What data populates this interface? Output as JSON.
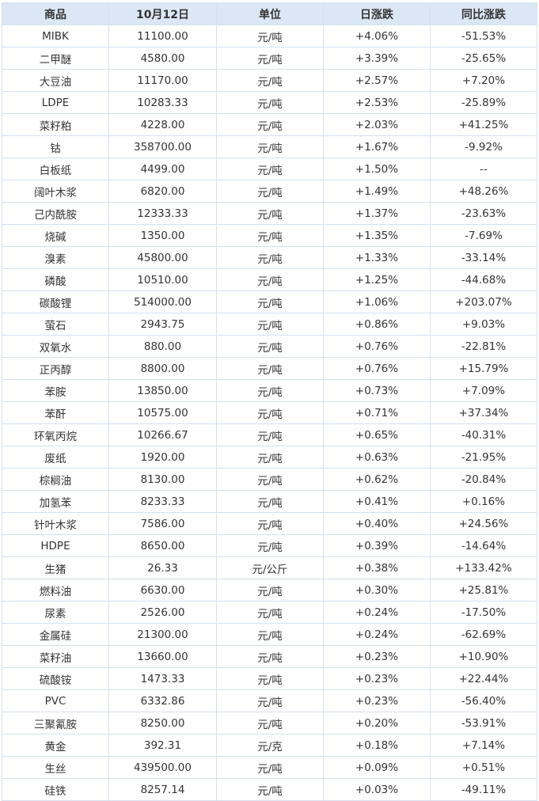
{
  "table": {
    "headers": [
      "商品",
      "10月12日",
      "单位",
      "日涨跌",
      "同比涨跌"
    ],
    "rows": [
      [
        "MIBK",
        "11100.00",
        "元/吨",
        "+4.06%",
        "-51.53%"
      ],
      [
        "二甲醚",
        "4580.00",
        "元/吨",
        "+3.39%",
        "-25.65%"
      ],
      [
        "大豆油",
        "11170.00",
        "元/吨",
        "+2.57%",
        "+7.20%"
      ],
      [
        "LDPE",
        "10283.33",
        "元/吨",
        "+2.53%",
        "-25.89%"
      ],
      [
        "菜籽粕",
        "4228.00",
        "元/吨",
        "+2.03%",
        "+41.25%"
      ],
      [
        "钴",
        "358700.00",
        "元/吨",
        "+1.67%",
        "-9.92%"
      ],
      [
        "白板纸",
        "4499.00",
        "元/吨",
        "+1.50%",
        "--"
      ],
      [
        "阔叶木浆",
        "6820.00",
        "元/吨",
        "+1.49%",
        "+48.26%"
      ],
      [
        "己内酰胺",
        "12333.33",
        "元/吨",
        "+1.37%",
        "-23.63%"
      ],
      [
        "烧碱",
        "1350.00",
        "元/吨",
        "+1.35%",
        "-7.69%"
      ],
      [
        "溴素",
        "45800.00",
        "元/吨",
        "+1.33%",
        "-33.14%"
      ],
      [
        "磷酸",
        "10510.00",
        "元/吨",
        "+1.25%",
        "-44.68%"
      ],
      [
        "碳酸锂",
        "514000.00",
        "元/吨",
        "+1.06%",
        "+203.07%"
      ],
      [
        "萤石",
        "2943.75",
        "元/吨",
        "+0.86%",
        "+9.03%"
      ],
      [
        "双氧水",
        "880.00",
        "元/吨",
        "+0.76%",
        "-22.81%"
      ],
      [
        "正丙醇",
        "8800.00",
        "元/吨",
        "+0.76%",
        "+15.79%"
      ],
      [
        "苯胺",
        "13850.00",
        "元/吨",
        "+0.73%",
        "+7.09%"
      ],
      [
        "苯酐",
        "10575.00",
        "元/吨",
        "+0.71%",
        "+37.34%"
      ],
      [
        "环氧丙烷",
        "10266.67",
        "元/吨",
        "+0.65%",
        "-40.31%"
      ],
      [
        "废纸",
        "1920.00",
        "元/吨",
        "+0.63%",
        "-21.95%"
      ],
      [
        "棕榈油",
        "8130.00",
        "元/吨",
        "+0.62%",
        "-20.84%"
      ],
      [
        "加氢苯",
        "8233.33",
        "元/吨",
        "+0.41%",
        "+0.16%"
      ],
      [
        "针叶木浆",
        "7586.00",
        "元/吨",
        "+0.40%",
        "+24.56%"
      ],
      [
        "HDPE",
        "8650.00",
        "元/吨",
        "+0.39%",
        "-14.64%"
      ],
      [
        "生猪",
        "26.33",
        "元/公斤",
        "+0.38%",
        "+133.42%"
      ],
      [
        "燃料油",
        "6630.00",
        "元/吨",
        "+0.30%",
        "+25.81%"
      ],
      [
        "尿素",
        "2526.00",
        "元/吨",
        "+0.24%",
        "-17.50%"
      ],
      [
        "金属硅",
        "21300.00",
        "元/吨",
        "+0.24%",
        "-62.69%"
      ],
      [
        "菜籽油",
        "13660.00",
        "元/吨",
        "+0.23%",
        "+10.90%"
      ],
      [
        "硫酸铵",
        "1473.33",
        "元/吨",
        "+0.23%",
        "+22.44%"
      ],
      [
        "PVC",
        "6332.86",
        "元/吨",
        "+0.23%",
        "-56.40%"
      ],
      [
        "三聚氰胺",
        "8250.00",
        "元/吨",
        "+0.20%",
        "-53.91%"
      ],
      [
        "黄金",
        "392.31",
        "元/克",
        "+0.18%",
        "+7.14%"
      ],
      [
        "生丝",
        "439500.00",
        "元/吨",
        "+0.09%",
        "+0.51%"
      ],
      [
        "硅铁",
        "8257.14",
        "元/吨",
        "+0.03%",
        "-49.11%"
      ]
    ]
  },
  "colors": {
    "header_bg": "#dbe7f4",
    "border": "#d6e1ee",
    "up": "#e0261f",
    "down": "#2b8a2e",
    "text": "#333333"
  }
}
